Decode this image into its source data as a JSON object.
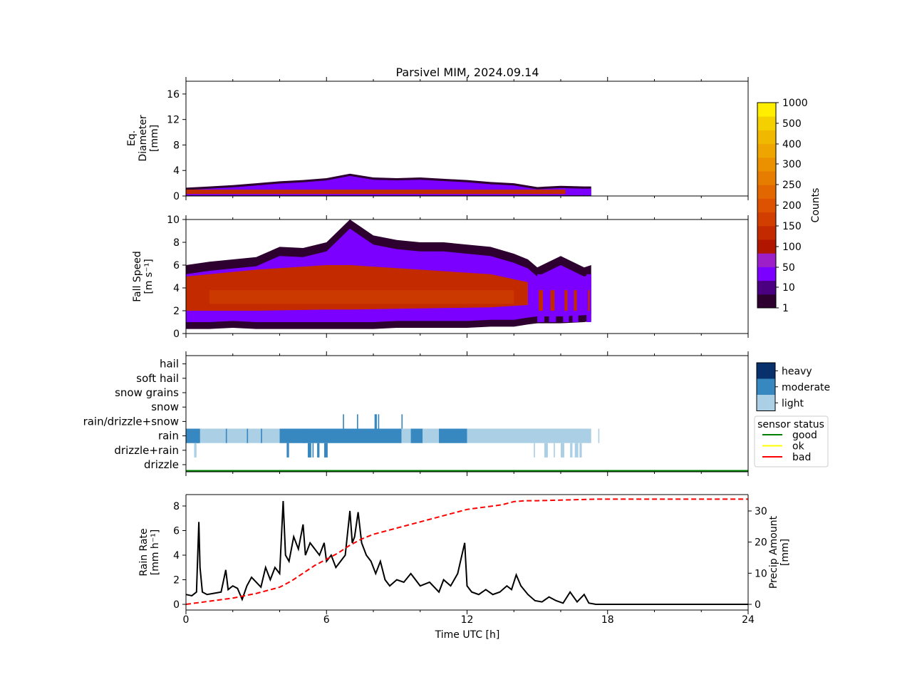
{
  "chart_data": [
    {
      "type": "heatmap",
      "title": "Parsivel MIM, 2024.09.14",
      "ylabel": [
        "Eq.",
        "Diameter",
        "[mm]"
      ],
      "xlim": [
        0,
        24
      ],
      "ylim": [
        0,
        18
      ],
      "yticks": [
        "0",
        "4",
        "8",
        "12",
        "16"
      ],
      "envelope": {
        "time_h": [
          0.0,
          1,
          2,
          3,
          4,
          5,
          6,
          7,
          8,
          9,
          10,
          11,
          12,
          13,
          14,
          15,
          16,
          17,
          17.3
        ],
        "max_diameter_mm": [
          1.3,
          1.5,
          1.7,
          2.0,
          2.3,
          2.5,
          2.8,
          3.5,
          2.9,
          2.8,
          2.9,
          2.7,
          2.5,
          2.2,
          2.0,
          1.4,
          1.6,
          1.5,
          1.5
        ]
      }
    },
    {
      "type": "heatmap",
      "ylabel": [
        "Fall Speed",
        "[m s⁻¹]"
      ],
      "xlim": [
        0,
        24
      ],
      "ylim": [
        0,
        10
      ],
      "yticks": [
        "0",
        "2",
        "4",
        "6",
        "8",
        "10"
      ],
      "envelope": {
        "time_h": [
          0.0,
          1,
          2,
          3,
          4,
          5,
          6,
          7,
          8,
          9,
          10,
          11,
          12,
          13,
          14,
          14.6,
          15,
          16,
          17,
          17.3
        ],
        "max_speed": [
          6.0,
          6.3,
          6.5,
          6.7,
          7.6,
          7.5,
          8.0,
          10.0,
          8.6,
          8.2,
          8.0,
          8.0,
          7.8,
          7.6,
          7.0,
          6.5,
          5.8,
          6.8,
          5.8,
          6.0
        ],
        "min_speed": [
          0.4,
          0.4,
          0.5,
          0.4,
          0.4,
          0.4,
          0.4,
          0.4,
          0.4,
          0.5,
          0.5,
          0.5,
          0.5,
          0.6,
          0.6,
          0.8,
          0.9,
          0.9,
          1.0,
          1.1
        ]
      }
    },
    {
      "type": "heatmap",
      "categories": [
        "drizzle",
        "drizzle+rain",
        "rain",
        "rain/drizzle+snow",
        "snow",
        "snow grains",
        "soft hail",
        "hail"
      ],
      "xlim": [
        0,
        24
      ],
      "intensity_legend": [
        "heavy",
        "moderate",
        "light"
      ],
      "intensity_colors": {
        "light": "#abd0e6",
        "moderate": "#3787c0",
        "heavy": "#08306b"
      },
      "sensor_status": {
        "title": "sensor status",
        "entries": [
          {
            "label": "good",
            "color": "#008000"
          },
          {
            "label": "ok",
            "color": "#ffff00"
          },
          {
            "label": "bad",
            "color": "#ff0000"
          }
        ],
        "status": "good"
      },
      "rain_light_segments": [
        [
          0,
          17.3
        ],
        [
          17.6,
          17.65
        ]
      ],
      "rain_moderate_segments": [
        [
          0,
          0.6
        ],
        [
          0.45,
          0.55
        ],
        [
          1.7,
          1.75
        ],
        [
          3.2,
          3.25
        ],
        [
          4.0,
          9.2
        ],
        [
          9.6,
          10.1
        ],
        [
          10.8,
          12.0
        ],
        [
          2.6,
          2.65
        ],
        [
          5.0,
          5.1
        ]
      ],
      "drizzle_rain_light_segments": [
        [
          0.35,
          0.45
        ],
        [
          14.85,
          14.9
        ],
        [
          15.3,
          15.45
        ],
        [
          15.7,
          15.75
        ],
        [
          16.0,
          16.15
        ],
        [
          16.4,
          16.5
        ],
        [
          16.6,
          16.75
        ],
        [
          16.8,
          16.9
        ]
      ],
      "drizzle_rain_moderate_segments": [
        [
          4.3,
          4.4
        ],
        [
          5.2,
          5.35
        ],
        [
          5.4,
          5.45
        ],
        [
          5.6,
          5.7
        ],
        [
          5.9,
          6.05
        ]
      ],
      "rain_drizzle_snow_moderate_segments": [
        [
          6.7,
          6.75
        ],
        [
          7.3,
          7.35
        ],
        [
          8.05,
          8.15
        ],
        [
          8.2,
          8.25
        ],
        [
          9.2,
          9.25
        ]
      ]
    },
    {
      "type": "line",
      "xlabel": "Time UTC [h]",
      "ylabel": [
        "Rain Rate",
        "[mm h⁻¹]"
      ],
      "ylabel_right": [
        "Precip Amount",
        "[mm]"
      ],
      "xlim": [
        0,
        24
      ],
      "ylim": [
        0,
        8.8
      ],
      "ylim_right": [
        -1.0,
        35.0
      ],
      "xticks": [
        "0",
        "6",
        "12",
        "18",
        "24"
      ],
      "yticks": [
        "0",
        "2",
        "4",
        "6",
        "8"
      ],
      "yticks_right": [
        "0",
        "10",
        "20",
        "30"
      ],
      "series": [
        {
          "name": "",
          "axis": "left",
          "color": "#000000",
          "style": "solid",
          "x": [
            0.0,
            0.25,
            0.45,
            0.55,
            0.6,
            0.7,
            0.9,
            1.2,
            1.5,
            1.7,
            1.8,
            2.0,
            2.2,
            2.4,
            2.6,
            2.8,
            3.0,
            3.2,
            3.4,
            3.6,
            3.8,
            4.0,
            4.15,
            4.25,
            4.4,
            4.6,
            4.8,
            5.0,
            5.1,
            5.3,
            5.5,
            5.7,
            5.9,
            6.0,
            6.2,
            6.4,
            6.6,
            6.8,
            7.0,
            7.1,
            7.2,
            7.35,
            7.5,
            7.7,
            7.9,
            8.1,
            8.3,
            8.5,
            8.7,
            9.0,
            9.3,
            9.6,
            10.0,
            10.4,
            10.8,
            11.0,
            11.3,
            11.6,
            11.9,
            12.0,
            12.2,
            12.5,
            12.8,
            13.1,
            13.4,
            13.7,
            13.9,
            14.1,
            14.3,
            14.6,
            14.9,
            15.2,
            15.5,
            15.8,
            16.1,
            16.4,
            16.7,
            17.0,
            17.2,
            17.5,
            18.0,
            20.0,
            24.0
          ],
          "y": [
            0.8,
            0.7,
            1.0,
            6.7,
            3.0,
            1.0,
            0.8,
            0.9,
            1.0,
            2.8,
            1.2,
            1.5,
            1.3,
            0.4,
            1.5,
            2.2,
            1.8,
            1.4,
            3.0,
            2.0,
            3.0,
            2.5,
            8.4,
            4.0,
            3.5,
            5.5,
            4.5,
            6.5,
            4.0,
            5.0,
            4.5,
            4.0,
            5.0,
            3.5,
            4.0,
            3.0,
            3.5,
            4.0,
            7.6,
            5.0,
            5.5,
            7.5,
            5.0,
            4.0,
            3.5,
            2.5,
            3.5,
            2.0,
            1.5,
            2.0,
            1.8,
            2.5,
            1.5,
            1.8,
            1.0,
            2.0,
            1.5,
            2.5,
            5.0,
            1.5,
            1.0,
            0.8,
            1.2,
            0.8,
            1.0,
            1.5,
            1.2,
            2.4,
            1.5,
            0.8,
            0.3,
            0.2,
            0.6,
            0.3,
            0.1,
            1.0,
            0.2,
            0.8,
            0.1,
            0.0,
            0.0,
            0.0,
            0.0
          ]
        },
        {
          "name": "",
          "axis": "right",
          "color": "#ff0000",
          "style": "dashed",
          "x": [
            0.0,
            0.5,
            1.0,
            2.0,
            3.0,
            4.0,
            4.5,
            5.0,
            5.5,
            6.0,
            6.5,
            7.0,
            7.5,
            8.0,
            8.5,
            9.0,
            9.5,
            10.0,
            10.5,
            11.0,
            11.5,
            12.0,
            12.5,
            13.0,
            13.5,
            14.0,
            14.5,
            15.0,
            15.5,
            16.0,
            16.5,
            17.0,
            17.5,
            18.0,
            20.0,
            24.0
          ],
          "y": [
            0.0,
            0.5,
            1.0,
            2.0,
            3.5,
            5.5,
            7.5,
            10.0,
            12.5,
            14.5,
            16.5,
            19.0,
            21.0,
            22.5,
            23.5,
            24.5,
            25.5,
            26.5,
            27.5,
            28.5,
            29.5,
            30.5,
            31.0,
            31.5,
            32.0,
            33.0,
            33.3,
            33.3,
            33.4,
            33.5,
            33.6,
            33.7,
            33.8,
            33.8,
            33.8,
            33.8
          ]
        }
      ]
    }
  ],
  "colorbar": {
    "label": "Counts",
    "ticks": [
      "1",
      "10",
      "50",
      "100",
      "150",
      "200",
      "250",
      "300",
      "400",
      "500",
      "1000"
    ],
    "colors": [
      "#2d0030",
      "#4a0080",
      "#7b00ff",
      "#9d1fc8",
      "#b01500",
      "#c42a00",
      "#d23e00",
      "#dd5200",
      "#e36700",
      "#e77d00",
      "#eb9100",
      "#eea500",
      "#f1b800",
      "#f5d000",
      "#ffee00"
    ]
  }
}
